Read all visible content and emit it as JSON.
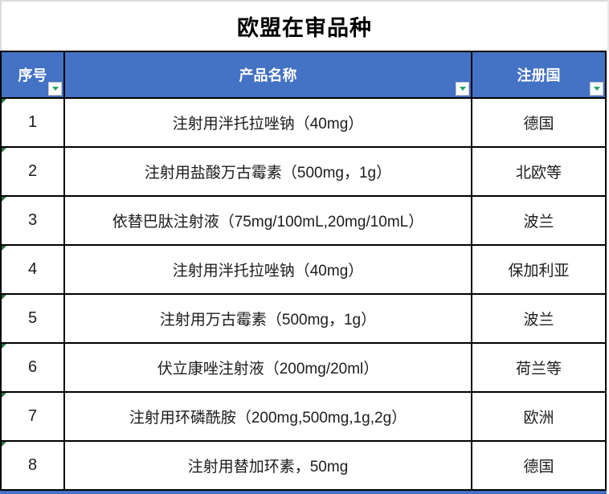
{
  "title": "欧盟在审品种",
  "colors": {
    "header_bg": "#4472C4",
    "border": "#000000",
    "filter_arrow_green": "#21A366",
    "error_indicator_green": "#217346"
  },
  "table": {
    "columns": [
      {
        "label": "序号"
      },
      {
        "label": "产品名称"
      },
      {
        "label": "注册国"
      }
    ],
    "rows": [
      {
        "no": "1",
        "product": "注射用泮托拉唑钠（40mg）",
        "country": "德国"
      },
      {
        "no": "2",
        "product": "注射用盐酸万古霉素（500mg，1g）",
        "country": "北欧等"
      },
      {
        "no": "3",
        "product": "依替巴肽注射液（75mg/100mL,20mg/10mL）",
        "country": "波兰"
      },
      {
        "no": "4",
        "product": "注射用泮托拉唑钠（40mg）",
        "country": "保加利亚"
      },
      {
        "no": "5",
        "product": "注射用万古霉素（500mg，1g）",
        "country": "波兰"
      },
      {
        "no": "6",
        "product": "伏立康唑注射液（200mg/20ml）",
        "country": "荷兰等"
      },
      {
        "no": "7",
        "product": "注射用环磷酰胺（200mg,500mg,1g,2g）",
        "country": "欧洲"
      },
      {
        "no": "8",
        "product": "注射用替加环素，50mg",
        "country": "德国"
      }
    ]
  }
}
